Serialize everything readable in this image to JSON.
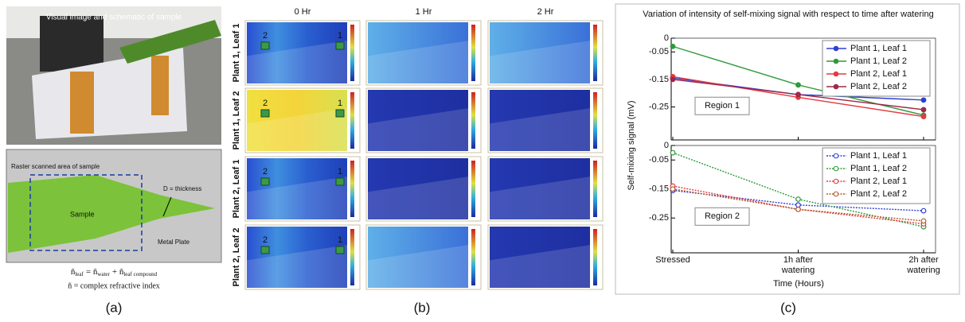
{
  "panel_a": {
    "title": "Visual image and schematic of sample",
    "raster_label": "Raster scanned area of sample",
    "thickness_label": "D = thickness",
    "sample_label": "Sample",
    "plate_label": "Metal Plate",
    "formula": [
      "ñ",
      "leaf",
      "= ñ",
      "water",
      "+ ñ",
      "leaf compound"
    ],
    "definition": "ñ = complex  refractive  index",
    "caption": "(a)"
  },
  "panel_b": {
    "columns": [
      "0 Hr",
      "1 Hr",
      "2 Hr"
    ],
    "rows": [
      "Plant 1, Leaf 1",
      "Plant 1, Leaf 2",
      "Plant 2, Leaf 1",
      "Plant 2, Leaf 2"
    ],
    "region_markers": [
      "2",
      "1"
    ],
    "caption": "(b)"
  },
  "chart_data": [
    {
      "type": "line",
      "title": "Variation of intensity of self-mixing signal with respect to time after watering",
      "y_label": "Self-mixing signal (mV)",
      "annotation": "Region 1",
      "ylim": [
        -0.37,
        0
      ],
      "yticks": [
        0,
        -0.05,
        -0.15,
        -0.25
      ],
      "linestyle": "solid",
      "marker_fill": "filled",
      "legend": "upper right",
      "series": [
        {
          "name": "Plant 1, Leaf 1",
          "color": "#2f3fd6",
          "values": [
            -0.145,
            -0.205,
            -0.225
          ]
        },
        {
          "name": "Plant 1, Leaf 2",
          "color": "#2e9a3a",
          "values": [
            -0.03,
            -0.17,
            -0.28
          ]
        },
        {
          "name": "Plant 2, Leaf 1",
          "color": "#e53a40",
          "values": [
            -0.14,
            -0.215,
            -0.285
          ]
        },
        {
          "name": "Plant 2, Leaf 2",
          "color": "#a0284a",
          "values": [
            -0.15,
            -0.205,
            -0.26
          ]
        }
      ]
    },
    {
      "type": "line",
      "x_label": "Time (Hours)",
      "annotation": "Region 2",
      "categories": [
        "Stressed",
        "1h after watering",
        "2h after watering"
      ],
      "ylim": [
        -0.37,
        0
      ],
      "yticks": [
        0,
        -0.05,
        -0.15,
        -0.25
      ],
      "linestyle": "dotted",
      "marker_fill": "none",
      "legend": "upper right",
      "series": [
        {
          "name": "Plant 1, Leaf 1",
          "color": "#2f3fd6",
          "values": [
            -0.155,
            -0.205,
            -0.225
          ]
        },
        {
          "name": "Plant 1, Leaf 2",
          "color": "#2e9a3a",
          "values": [
            -0.025,
            -0.185,
            -0.28
          ]
        },
        {
          "name": "Plant 2, Leaf 1",
          "color": "#e53a40",
          "values": [
            -0.14,
            -0.22,
            -0.27
          ]
        },
        {
          "name": "Plant 2, Leaf 2",
          "color": "#b05a2a",
          "values": [
            -0.15,
            -0.22,
            -0.26
          ]
        }
      ]
    }
  ],
  "panel_c": {
    "caption": "(c)"
  }
}
